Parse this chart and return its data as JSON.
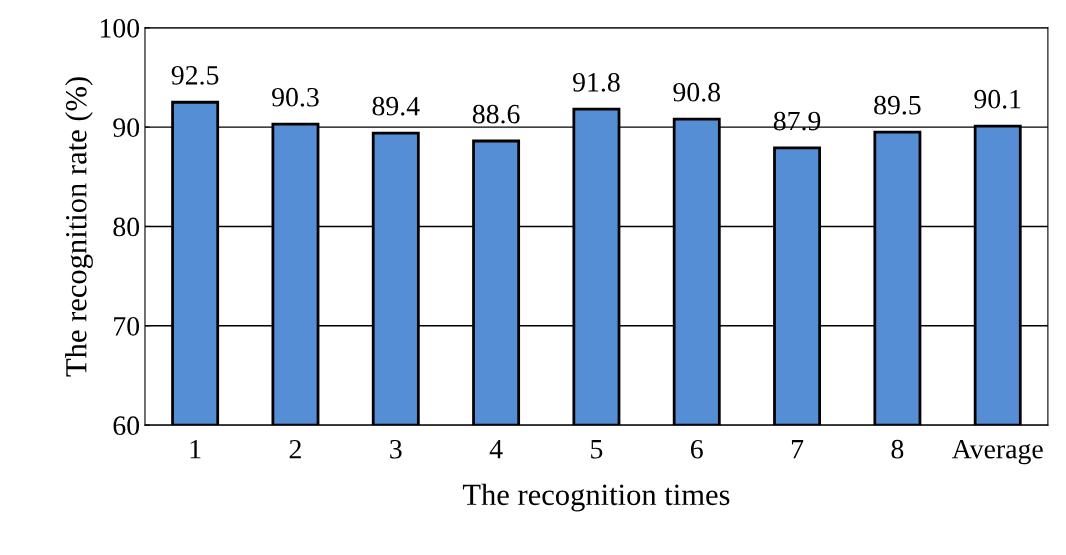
{
  "chart_data": {
    "type": "bar",
    "xlabel": "The recognition times",
    "ylabel": "The recognition rate (%)",
    "categories": [
      "1",
      "2",
      "3",
      "4",
      "5",
      "6",
      "7",
      "8",
      "Average"
    ],
    "values": [
      92.5,
      90.3,
      89.4,
      88.6,
      91.8,
      90.8,
      87.9,
      89.5,
      90.1
    ],
    "color": "#558ed5",
    "ylim": [
      60,
      100
    ],
    "yticks": [
      60,
      70,
      80,
      90,
      100
    ],
    "grid": "y",
    "data_labels": true
  }
}
